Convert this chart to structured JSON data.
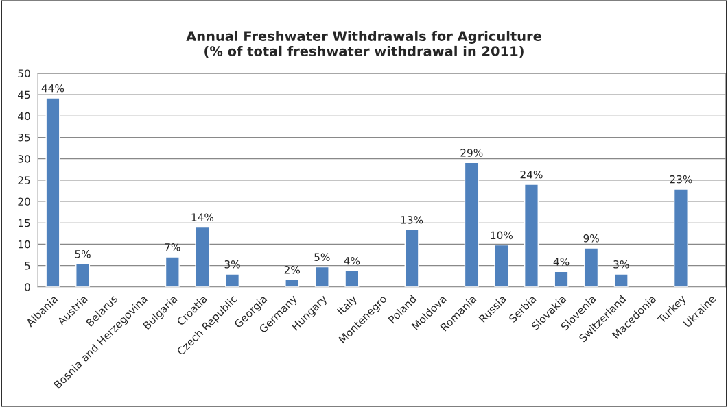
{
  "chart_data": {
    "type": "bar",
    "title": "Annual Freshwater Withdrawals for Agriculture\n(% of total freshwater withdrawal in 2011)",
    "categories": [
      "Albania",
      "Austria",
      "Belarus",
      "Bosnia and Herzegovina",
      "Bulgaria",
      "Croatia",
      "Czech Republic",
      "Georgia",
      "Germany",
      "Hungary",
      "Italy",
      "Montenegro",
      "Poland",
      "Moldova",
      "Romania",
      "Russia",
      "Serbia",
      "Slovakia",
      "Slovenia",
      "Switzerland",
      "Macedonia",
      "Turkey",
      "Ukraine"
    ],
    "values": [
      44.2,
      5.4,
      null,
      null,
      7.0,
      14.0,
      3.0,
      null,
      1.7,
      4.7,
      3.8,
      null,
      13.4,
      null,
      29.1,
      9.8,
      24.0,
      3.6,
      9.1,
      3.0,
      null,
      22.9,
      null
    ],
    "value_labels": [
      "44%",
      "5%",
      null,
      null,
      "7%",
      "14%",
      "3%",
      null,
      "2%",
      "5%",
      "4%",
      null,
      "13%",
      null,
      "29%",
      "10%",
      "24%",
      "4%",
      "9%",
      "3%",
      null,
      "23%",
      null
    ],
    "color": "#4f81bd",
    "ylim": [
      0,
      50
    ],
    "yticks": [
      0,
      5,
      10,
      15,
      20,
      25,
      30,
      35,
      40,
      45,
      50
    ],
    "grid": "y",
    "legend": false
  }
}
